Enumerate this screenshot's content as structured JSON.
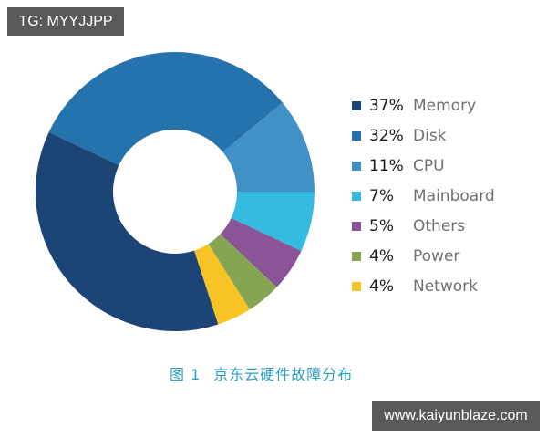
{
  "watermark_top": "TG: MYYJJPP",
  "watermark_bottom": "www.kaiyunblaze.com",
  "caption": {
    "figure_label": "图 1",
    "title": "京东云硬件故障分布"
  },
  "legend": [
    {
      "percent": "37%",
      "label": "Memory",
      "color": "#1c4576"
    },
    {
      "percent": "32%",
      "label": "Disk",
      "color": "#2573ad"
    },
    {
      "percent": "11%",
      "label": "CPU",
      "color": "#4191c7"
    },
    {
      "percent": "7%",
      "label": "Mainboard",
      "color": "#35bbe0"
    },
    {
      "percent": "5%",
      "label": "Others",
      "color": "#8a5497"
    },
    {
      "percent": "4%",
      "label": "Power",
      "color": "#85a553"
    },
    {
      "percent": "4%",
      "label": "Network",
      "color": "#f7c325"
    }
  ],
  "chart_data": {
    "type": "pie",
    "subtype": "donut",
    "title": "图 1 京东云硬件故障分布",
    "categories": [
      "Memory",
      "Disk",
      "CPU",
      "Mainboard",
      "Others",
      "Power",
      "Network"
    ],
    "values": [
      37,
      32,
      11,
      7,
      5,
      4,
      4
    ],
    "unit": "%",
    "colors": [
      "#1c4576",
      "#2573ad",
      "#4191c7",
      "#35bbe0",
      "#8a5497",
      "#85a553",
      "#f7c325"
    ],
    "legend_position": "right"
  }
}
